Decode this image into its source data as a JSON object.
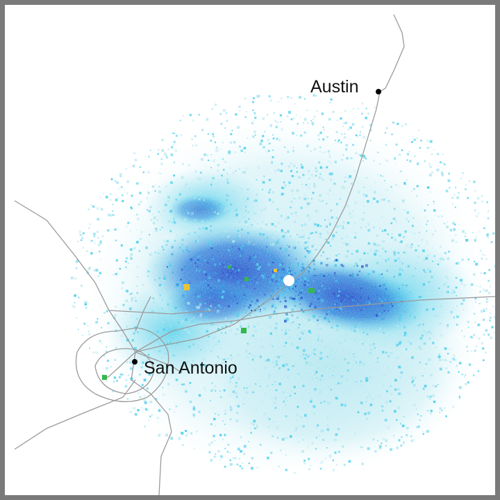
{
  "map": {
    "cities": [
      {
        "name": "Austin",
        "marker": "city-dot-icon"
      },
      {
        "name": "San Antonio",
        "marker": "city-dot-icon"
      }
    ],
    "radar_site_marker": "radar-site-icon",
    "colors": {
      "frame": "#7a7a7a",
      "background": "#ffffff",
      "roads": "#9a9a9a",
      "echo_light": "#a8e3ee",
      "echo_cyan": "#37c8e8",
      "echo_mid": "#1c8fe0",
      "echo_dark": "#1845c8",
      "echo_green": "#34b84a",
      "echo_yellow": "#e6c43a",
      "radar_site": "#ffffff",
      "city_dot": "#000000"
    }
  }
}
